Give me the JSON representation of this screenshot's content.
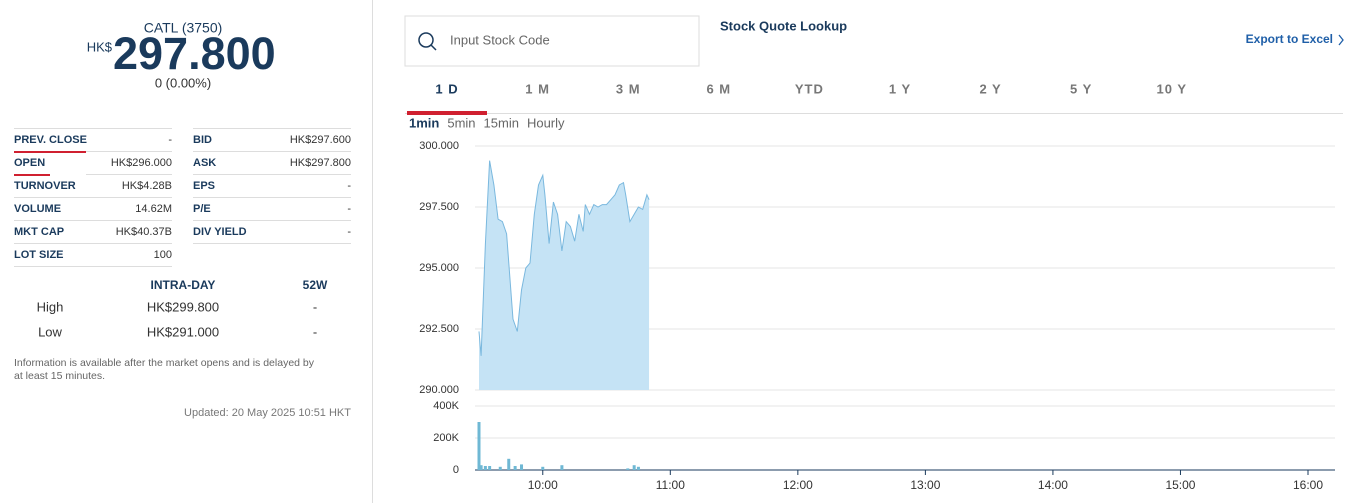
{
  "quote": {
    "name": "CATL (3750)",
    "currency": "HK$",
    "price": "297.800",
    "change": "0 (0.00%)"
  },
  "stats": {
    "rows": [
      [
        "PREV. CLOSE",
        "-",
        "BID",
        "HK$297.600"
      ],
      [
        "OPEN",
        "HK$296.000",
        "ASK",
        "HK$297.800"
      ],
      [
        "TURNOVER",
        "HK$4.28B",
        "EPS",
        "-"
      ],
      [
        "VOLUME",
        "14.62M",
        "P/E",
        "-"
      ],
      [
        "MKT CAP",
        "HK$40.37B",
        "DIV YIELD",
        "-"
      ],
      [
        "LOT SIZE",
        "100"
      ]
    ]
  },
  "range_table": {
    "headers": [
      "INTRA-DAY",
      "52W"
    ],
    "rows": [
      [
        "High",
        "HK$299.800",
        "-"
      ],
      [
        "Low",
        "HK$291.000",
        "-"
      ]
    ]
  },
  "note": [
    "Information is available after the market opens and is delayed by",
    "at least 15 minutes."
  ],
  "updated": "Updated: 20 May 2025 10:51 HKT",
  "search": {
    "placeholder": "Input Stock Code",
    "title": "Stock Quote Lookup",
    "export": "Export to Excel"
  },
  "tabs": {
    "items": [
      "1 D",
      "1 M",
      "3 M",
      "6 M",
      "YTD",
      "1 Y",
      "2 Y",
      "5 Y",
      "10 Y"
    ],
    "active": 0
  },
  "intervals": {
    "items": [
      "1min",
      "5min",
      "15min",
      "Hourly"
    ],
    "active": 0
  },
  "chart_data": [
    {
      "type": "area",
      "color": "#7ab8de",
      "fill": "#c5e3f5",
      "grid": true,
      "x": [
        "09:30",
        "09:31",
        "09:33",
        "09:35",
        "09:37",
        "09:39",
        "09:41",
        "09:43",
        "09:44",
        "09:46",
        "09:48",
        "09:50",
        "09:52",
        "09:54",
        "09:56",
        "09:58",
        "10:00",
        "10:01",
        "10:03",
        "10:05",
        "10:07",
        "10:09",
        "10:11",
        "10:13",
        "10:15",
        "10:17",
        "10:19",
        "10:20",
        "10:22",
        "10:24",
        "10:26",
        "10:28",
        "10:30",
        "10:32",
        "10:34",
        "10:36",
        "10:38",
        "10:39",
        "10:41",
        "10:43",
        "10:45",
        "10:47",
        "10:49",
        "10:50"
      ],
      "values": [
        292.4,
        291.4,
        296.0,
        299.4,
        298.4,
        297.0,
        296.9,
        296.4,
        295.2,
        292.9,
        292.4,
        294.1,
        295.0,
        295.2,
        297.2,
        298.4,
        298.8,
        298.0,
        296.0,
        297.7,
        297.2,
        295.7,
        296.9,
        296.7,
        296.1,
        297.2,
        296.5,
        297.6,
        297.2,
        297.6,
        297.5,
        297.6,
        297.6,
        297.8,
        298.0,
        298.4,
        298.5,
        298.0,
        296.9,
        297.2,
        297.5,
        297.4,
        298.0,
        297.8
      ],
      "xlim": [
        "09:30",
        "16:00"
      ],
      "ylim": [
        290,
        300
      ],
      "yticks": [
        {
          "value": 290,
          "label": "290.000"
        },
        {
          "value": 292.5,
          "label": "292.500"
        },
        {
          "value": 295,
          "label": "295.000"
        },
        {
          "value": 297.5,
          "label": "297.500"
        },
        {
          "value": 300,
          "label": "300.000"
        }
      ]
    },
    {
      "type": "bar",
      "color": "#6fb8d4",
      "grid": true,
      "x": [
        "09:30",
        "09:31",
        "09:33",
        "09:35",
        "09:40",
        "09:44",
        "09:47",
        "09:50",
        "10:00",
        "10:09",
        "10:40",
        "10:43",
        "10:45"
      ],
      "values": [
        300000,
        30000,
        25000,
        25000,
        20000,
        70000,
        25000,
        35000,
        20000,
        30000,
        10000,
        30000,
        20000
      ],
      "xlim": [
        "09:30",
        "16:00"
      ],
      "xticks": [
        "10:00",
        "11:00",
        "12:00",
        "13:00",
        "14:00",
        "15:00",
        "16:00"
      ],
      "ylim": [
        0,
        400000
      ],
      "yticks": [
        0,
        {
          "value": 200000,
          "label": "200K"
        },
        {
          "value": 400000,
          "label": "400K"
        }
      ]
    }
  ]
}
